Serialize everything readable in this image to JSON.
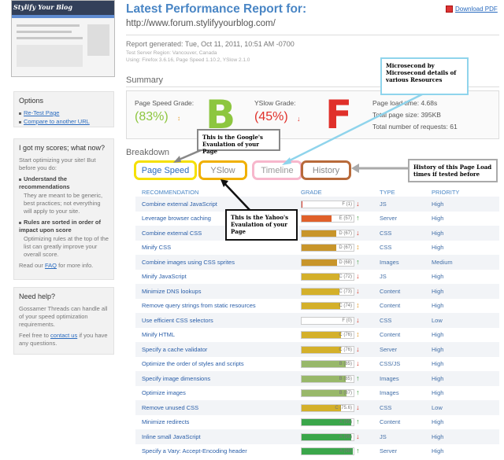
{
  "sidebar": {
    "thumb_title": "Stylify Your Blog",
    "options": {
      "title": "Options",
      "links": [
        "Re-Test Page",
        "Compare to another URL"
      ]
    },
    "scores": {
      "title": "I got my scores; what now?",
      "intro": "Start optimizing your site! But before you do:",
      "item1_title": "Understand the recommendations",
      "item1_text": "They are meant to be generic, best practices; not everything will apply to your site.",
      "item2_title": "Rules are sorted in order of impact upon score",
      "item2_text": "Optimizing rules at the top of the list can greatly improve your overall score.",
      "read": "Read our",
      "faq": "FAQ",
      "more": "for more info."
    },
    "help": {
      "title": "Need help?",
      "text": "Gossamer Threads can handle all of your speed optimization requirements.",
      "text2": "Feel free to",
      "contact": "contact us",
      "text3": "if you have any questions."
    }
  },
  "header": {
    "title": "Latest Performance Report for:",
    "url": "http://www.forum.stylifyyourblog.com/",
    "pdf": "Download PDF"
  },
  "meta": {
    "generated": "Report generated: Tue, Oct 11, 2011, 10:51 AM -0700",
    "region": "Test Server Region: Vancouver, Canada",
    "using": "Using: Firefox 3.6.16, Page Speed 1.10.2, YSlow 2.1.0"
  },
  "summary": {
    "title": "Summary",
    "ps_label": "Page Speed Grade:",
    "ps_value": "(83%)",
    "ps_grade": "B",
    "ys_label": "YSlow Grade:",
    "ys_value": "(45%)",
    "ys_grade": "F",
    "load_label": "Page load time:",
    "load_value": "4.68s",
    "size_label": "Total page size:",
    "size_value": "395KB",
    "req_label": "Total number of requests:",
    "req_value": "61"
  },
  "breakdown": {
    "title": "Breakdown",
    "tabs": [
      "Page Speed",
      "YSlow",
      "Timeline",
      "History"
    ]
  },
  "table": {
    "headers": [
      "RECOMMENDATION",
      "GRADE",
      "TYPE",
      "PRIORITY"
    ],
    "rows": [
      {
        "name": "Combine external JavaScript",
        "grade": "F (1)",
        "pct": 1,
        "color": "#d63a2a",
        "dir": "down",
        "type": "JS",
        "priority": "High"
      },
      {
        "name": "Leverage browser caching",
        "grade": "E (57)",
        "pct": 57,
        "color": "#e0602a",
        "dir": "up",
        "type": "Server",
        "priority": "High"
      },
      {
        "name": "Combine external CSS",
        "grade": "D (67)",
        "pct": 67,
        "color": "#c8952a",
        "dir": "down",
        "type": "CSS",
        "priority": "High"
      },
      {
        "name": "Minify CSS",
        "grade": "D (67)",
        "pct": 67,
        "color": "#c8952a",
        "dir": "same",
        "type": "CSS",
        "priority": "High"
      },
      {
        "name": "Combine images using CSS sprites",
        "grade": "D (68)",
        "pct": 68,
        "color": "#c8952a",
        "dir": "up",
        "type": "Images",
        "priority": "Medium"
      },
      {
        "name": "Minify JavaScript",
        "grade": "C (72)",
        "pct": 72,
        "color": "#d4b02a",
        "dir": "down",
        "type": "JS",
        "priority": "High"
      },
      {
        "name": "Minimize DNS lookups",
        "grade": "C (73)",
        "pct": 73,
        "color": "#d4b02a",
        "dir": "down",
        "type": "Content",
        "priority": "High"
      },
      {
        "name": "Remove query strings from static resources",
        "grade": "C (74)",
        "pct": 74,
        "color": "#d4b02a",
        "dir": "same",
        "type": "Content",
        "priority": "High"
      },
      {
        "name": "Use efficient CSS selectors",
        "grade": "F (0)",
        "pct": 0,
        "color": "#d63a2a",
        "dir": "down",
        "type": "CSS",
        "priority": "Low"
      },
      {
        "name": "Minify HTML",
        "grade": "C (76)",
        "pct": 76,
        "color": "#d4b02a",
        "dir": "same",
        "type": "Content",
        "priority": "High"
      },
      {
        "name": "Specify a cache validator",
        "grade": "C (76)",
        "pct": 76,
        "color": "#d4b02a",
        "dir": "down",
        "type": "Server",
        "priority": "High"
      },
      {
        "name": "Optimize the order of styles and scripts",
        "grade": "B (85)",
        "pct": 85,
        "color": "#98b86a",
        "dir": "down",
        "type": "CSS/JS",
        "priority": "High"
      },
      {
        "name": "Specify image dimensions",
        "grade": "B (85)",
        "pct": 85,
        "color": "#98b86a",
        "dir": "up",
        "type": "Images",
        "priority": "High"
      },
      {
        "name": "Optimize images",
        "grade": "B (87)",
        "pct": 87,
        "color": "#98b86a",
        "dir": "up",
        "type": "Images",
        "priority": "High"
      },
      {
        "name": "Remove unused CSS",
        "grade": "C (75.6)",
        "pct": 76,
        "color": "#d4b02a",
        "dir": "down",
        "type": "CSS",
        "priority": "Low"
      },
      {
        "name": "Minimize redirects",
        "grade": "A (95)",
        "pct": 95,
        "color": "#3aa64a",
        "dir": "up",
        "type": "Content",
        "priority": "High"
      },
      {
        "name": "Inline small JavaScript",
        "grade": "A (96)",
        "pct": 96,
        "color": "#3aa64a",
        "dir": "down",
        "type": "JS",
        "priority": "High"
      },
      {
        "name": "Specify a Vary: Accept-Encoding header",
        "grade": "A (98)",
        "pct": 98,
        "color": "#3aa64a",
        "dir": "up",
        "type": "Server",
        "priority": "High"
      }
    ]
  },
  "callouts": {
    "microsecond": "Microsecond by Microsecond details of various Resources",
    "google": "This is the Google's Evaulation of your Page",
    "yahoo": "This is the Yahoo's Evaulation of your Page",
    "history": "History of this Page Load times if tested before"
  },
  "colors": {
    "accent": "#4a86c5",
    "green": "#8dc63f",
    "red": "#e0302a"
  }
}
